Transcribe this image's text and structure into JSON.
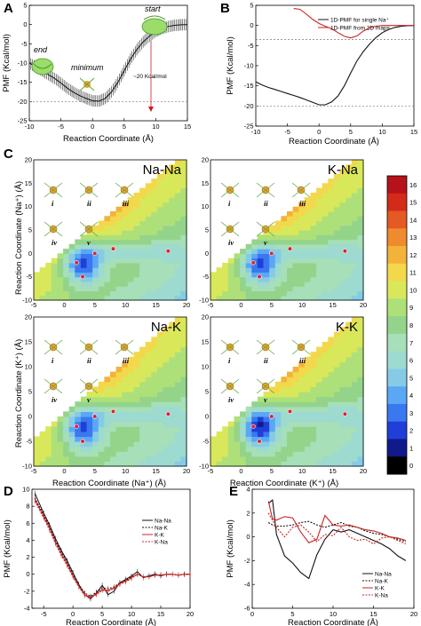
{
  "panels": {
    "A": {
      "letter": "A",
      "ylabel": "PMF (Kcal/mol)",
      "xlabel": "Reaction Coordinate (Å)",
      "ann_start": "start",
      "ann_end": "end",
      "ann_minimum": "minimum",
      "ann_barrier": "~20 Kcal/mol"
    },
    "B": {
      "letter": "B",
      "ylabel": "PMF (Kcal/mol)",
      "xlabel": "Reaction Coordinate (Å)",
      "legend": [
        "1D-PMF for single Na⁺",
        "1D-PMF from 2D maps"
      ]
    },
    "C": {
      "letter": "C",
      "titles": [
        "Na-Na",
        "K-Na",
        "Na-K",
        "K-K"
      ],
      "ylabel_top": "Reaction Coordinate (Na⁺) (Å)",
      "ylabel_bottom": "Reaction Coordinate (K⁺) (Å)",
      "xlabel_left": "Reaction Coordinate (Na⁺) (Å)",
      "xlabel_right": "Reaction Coordinate (K⁺) (Å)",
      "roman": [
        "i",
        "ii",
        "iii",
        "iv",
        "v"
      ],
      "colorbar_ticks": [
        "16",
        "15",
        "14",
        "13",
        "12",
        "11",
        "10",
        "9",
        "8",
        "7",
        "6",
        "5",
        "4",
        "3",
        "2",
        "1",
        "0"
      ]
    },
    "D": {
      "letter": "D",
      "ylabel": "PMF (Kcal/mol)",
      "xlabel": "Reaction Coordinate (Å)",
      "legend": [
        "Na-Na",
        "Na-K",
        "K-K",
        "K-Na"
      ]
    },
    "E": {
      "letter": "E",
      "ylabel": "PMF (Kcal/mol)",
      "xlabel": "Reaction Coordinate (Å)",
      "legend": [
        "Na-Na",
        "Na-K",
        "K-K",
        "K-Na"
      ]
    }
  },
  "colors": {
    "black": "#111111",
    "red": "#cc2222",
    "colormap": [
      "#000000",
      "#101a8a",
      "#1f3fd8",
      "#3a78f0",
      "#5aa8f5",
      "#86cbe6",
      "#9ddad0",
      "#a6dfb8",
      "#93d48a",
      "#aee07a",
      "#d9e85a",
      "#f2d84a",
      "#f3b23a",
      "#ef8a2e",
      "#e45a22",
      "#d42a1a",
      "#b5121a"
    ]
  },
  "chart_data": [
    {
      "panel": "A",
      "type": "line",
      "xlim": [
        -10,
        15
      ],
      "ylim": [
        -25,
        5
      ],
      "xticks": [
        -10,
        -5,
        0,
        5,
        10,
        15
      ],
      "yticks": [
        -25,
        -20,
        -15,
        -10,
        -5,
        0,
        5
      ],
      "x": [
        -10,
        -9,
        -8,
        -7,
        -6,
        -5,
        -4,
        -3,
        -2,
        -1,
        0,
        1,
        2,
        3,
        4,
        5,
        6,
        7,
        8,
        9,
        10,
        11,
        12,
        13,
        14,
        15
      ],
      "y": [
        -10,
        -11,
        -12,
        -13,
        -14,
        -15.2,
        -16.5,
        -17.6,
        -18.5,
        -19.2,
        -19.8,
        -19.9,
        -19.2,
        -17.5,
        -15,
        -12,
        -9,
        -6.5,
        -4.5,
        -3,
        -1.8,
        -1,
        -0.5,
        -0.2,
        -0.05,
        0
      ],
      "error": 1.5,
      "reference_line": -20
    },
    {
      "panel": "B",
      "type": "line",
      "xlim": [
        -10,
        15
      ],
      "ylim": [
        -25,
        5
      ],
      "xticks": [
        -10,
        -5,
        0,
        5,
        10,
        15
      ],
      "yticks": [
        -25,
        -20,
        -15,
        -10,
        -5,
        0,
        5
      ],
      "x": [
        -10,
        -9,
        -8,
        -7,
        -6,
        -5,
        -4,
        -3,
        -2,
        -1,
        0,
        1,
        2,
        3,
        4,
        5,
        6,
        7,
        8,
        9,
        10,
        11,
        12,
        13,
        14,
        15
      ],
      "series": [
        {
          "name": "1D-PMF for single Na⁺",
          "values": [
            -14,
            -14.8,
            -15.4,
            -15.9,
            -16.4,
            -16.9,
            -17.4,
            -17.9,
            -18.5,
            -19.1,
            -19.7,
            -19.7,
            -19.0,
            -17.5,
            -15,
            -11.8,
            -8.8,
            -6.5,
            -4.6,
            -3,
            -1.8,
            -1,
            -0.5,
            -0.2,
            -0.05,
            0
          ]
        },
        {
          "name": "1D-PMF from 2D maps",
          "values": [
            null,
            null,
            null,
            null,
            null,
            null,
            4.2,
            4,
            2.8,
            1.5,
            0.5,
            -0.2,
            -0.8,
            -1.8,
            -2.7,
            -3.1,
            -2.6,
            -1.4,
            -0.6,
            -0.2,
            0,
            0,
            0,
            0,
            0,
            0
          ]
        }
      ],
      "reference_lines": [
        -3.5,
        -20
      ]
    },
    {
      "panel": "C",
      "type": "heatmap",
      "xlim": [
        -5,
        20
      ],
      "ylim": [
        -10,
        20
      ],
      "xticks": [
        -5,
        0,
        5,
        10,
        15,
        20
      ],
      "yticks": [
        -10,
        -5,
        0,
        5,
        10,
        15,
        20
      ],
      "zlim": [
        0,
        16
      ],
      "maps": [
        "Na-Na",
        "K-Na",
        "Na-K",
        "K-K"
      ]
    },
    {
      "panel": "D",
      "type": "line",
      "xlim": [
        -7,
        20
      ],
      "ylim": [
        -4,
        10
      ],
      "xticks": [
        -5,
        0,
        5,
        10,
        15,
        20
      ],
      "yticks": [
        -4,
        -2,
        0,
        2,
        4,
        6,
        8,
        10
      ],
      "x": [
        -6.5,
        -5,
        -4,
        -3,
        -2,
        -1,
        0,
        1,
        2,
        3,
        4,
        5,
        6,
        7,
        8,
        9,
        10,
        11,
        12,
        13,
        14,
        15,
        16,
        17,
        18,
        19,
        20
      ],
      "series": [
        {
          "name": "Na-Na",
          "values": [
            9.5,
            7.2,
            5.8,
            4.2,
            2.8,
            1.6,
            0.2,
            -1.2,
            -2.4,
            -2.9,
            -2.2,
            -1.3,
            -2.4,
            -2.0,
            -1.0,
            -0.6,
            -0.2,
            0.3,
            -0.4,
            -0.2,
            0.0,
            -0.2,
            0.0,
            0.0,
            -0.1,
            0.0,
            0.0
          ]
        },
        {
          "name": "Na-K",
          "values": [
            9.0,
            7.0,
            5.6,
            4.0,
            2.6,
            1.4,
            0.0,
            -1.2,
            -2.2,
            -2.6,
            -2.1,
            -1.6,
            -1.7,
            -1.5,
            -1.0,
            -0.7,
            -0.3,
            0.0,
            -0.3,
            -0.2,
            0.0,
            -0.1,
            0.0,
            0.0,
            -0.1,
            0.0,
            0.0
          ]
        },
        {
          "name": "K-K",
          "values": [
            8.8,
            6.8,
            5.4,
            3.8,
            2.4,
            1.2,
            -0.2,
            -1.4,
            -2.4,
            -2.7,
            -2.3,
            -1.8,
            -1.9,
            -1.6,
            -1.1,
            -0.8,
            -0.4,
            0.0,
            -0.3,
            -0.3,
            -0.1,
            -0.1,
            0.0,
            0.0,
            -0.1,
            0.0,
            0.0
          ]
        },
        {
          "name": "K-Na",
          "values": [
            8.6,
            6.6,
            5.2,
            3.6,
            2.2,
            1.0,
            -0.3,
            -1.5,
            -2.5,
            -2.8,
            -2.4,
            -1.9,
            -2.0,
            -1.7,
            -1.2,
            -0.9,
            -0.5,
            0.0,
            -0.3,
            -0.3,
            -0.1,
            -0.1,
            0.0,
            0.0,
            -0.1,
            0.0,
            0.0
          ]
        }
      ]
    },
    {
      "panel": "E",
      "type": "line",
      "xlim": [
        0,
        20
      ],
      "ylim": [
        -6,
        4
      ],
      "xticks": [
        0,
        5,
        10,
        15,
        20
      ],
      "yticks": [
        -6,
        -4,
        -2,
        0,
        2,
        4
      ],
      "x": [
        2,
        2.5,
        3,
        4,
        5,
        6,
        7,
        8,
        9,
        10,
        11,
        12,
        13,
        14,
        15,
        16,
        17,
        18,
        19
      ],
      "series": [
        {
          "name": "Na-Na",
          "values": [
            2.8,
            3.1,
            0.2,
            -1.6,
            -2.2,
            -3.0,
            -3.5,
            -1.5,
            -0.2,
            0.6,
            0.4,
            0.6,
            0.3,
            0.0,
            -0.3,
            -0.6,
            -1.0,
            -1.6,
            -2.0
          ]
        },
        {
          "name": "Na-K",
          "values": [
            1.2,
            1.0,
            0.9,
            0.9,
            1.0,
            1.2,
            1.3,
            1.0,
            0.8,
            1.0,
            1.2,
            0.9,
            0.8,
            0.5,
            0.3,
            0.2,
            0.0,
            -0.2,
            -0.4
          ]
        },
        {
          "name": "K-K",
          "values": [
            3.0,
            1.5,
            1.4,
            1.7,
            1.6,
            0.4,
            -0.5,
            -0.2,
            1.8,
            1.0,
            0.9,
            1.0,
            0.8,
            0.6,
            0.5,
            0.3,
            0.0,
            -0.1,
            -0.3
          ]
        },
        {
          "name": "K-Na",
          "values": [
            2.0,
            1.4,
            0.8,
            0.0,
            0.8,
            1.0,
            0.4,
            -0.4,
            0.2,
            0.1,
            0.8,
            0.0,
            -0.3,
            -0.2,
            -0.6,
            -0.1,
            0.0,
            -0.3,
            -0.6
          ]
        }
      ]
    }
  ]
}
